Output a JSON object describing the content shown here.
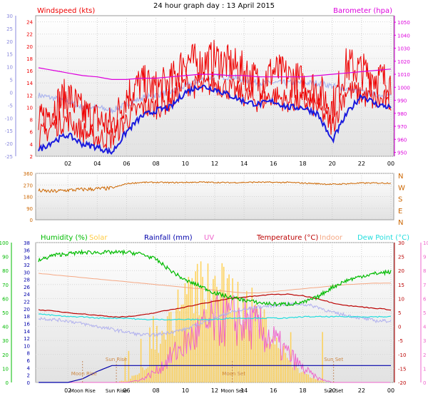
{
  "title": "24 hour graph day : 13 April 2015",
  "colors": {
    "windspeed": "#ee0000",
    "windgust": "#ee0000",
    "windavg": "#1a1add",
    "barometer": "#dd00dd",
    "baro_light": "#aab4ee",
    "wind_dir": "#cc6600",
    "humidity": "#00bb00",
    "solar": "#ffcc44",
    "rainfall": "#0000aa",
    "uv": "#ee66cc",
    "temperature": "#bb0000",
    "indoor": "#f5a884",
    "dewpoint": "#22dddd",
    "apparent": "#b0b0ee",
    "panel_top": "#ffffff",
    "panel_bottom": "#e4e4e4"
  },
  "chart_data": [
    {
      "type": "line",
      "title": "24 hour graph day : 13 April 2015",
      "legend": [
        {
          "key": "windspeed",
          "label": "Windspeed (kts)"
        },
        {
          "key": "barometer",
          "label": "Barometer (hpa)"
        }
      ],
      "x_ticks": [
        "02",
        "04",
        "06",
        "08",
        "10",
        "12",
        "14",
        "16",
        "18",
        "20",
        "22",
        "00"
      ],
      "y_left_ticks": [
        2,
        4,
        6,
        8,
        10,
        12,
        14,
        16,
        18,
        20,
        22,
        24
      ],
      "y_left_range": [
        2,
        25
      ],
      "y_left2_ticks": [
        -25,
        -20,
        -15,
        -10,
        -5,
        0,
        5,
        10,
        15,
        20,
        25,
        30
      ],
      "y_left2_range": [
        -25,
        30
      ],
      "y_right_ticks": [
        950,
        960,
        970,
        980,
        990,
        1000,
        1010,
        1020,
        1030,
        1040,
        1050
      ],
      "y_right_range": [
        947,
        1055
      ],
      "hours": [
        0,
        1,
        2,
        3,
        4,
        5,
        6,
        7,
        8,
        9,
        10,
        11,
        12,
        13,
        14,
        15,
        16,
        17,
        18,
        19,
        20,
        21,
        22,
        23,
        24
      ],
      "series": [
        {
          "key": "windgust",
          "unit": "kts",
          "values": [
            7,
            10,
            12,
            9,
            8,
            7,
            12,
            14,
            13,
            14,
            18,
            17,
            18,
            17,
            16,
            14,
            16,
            15,
            14,
            13,
            10,
            17,
            16,
            15,
            14
          ]
        },
        {
          "key": "windspeed",
          "unit": "kts",
          "values": [
            5,
            7,
            8,
            6,
            5,
            5,
            8,
            10,
            10,
            11,
            14,
            13,
            14,
            13,
            12,
            11,
            12,
            11,
            11,
            10,
            7,
            13,
            12,
            11,
            11
          ]
        },
        {
          "key": "windavg",
          "unit": "kts",
          "values": [
            3,
            4.5,
            5.5,
            4,
            3.5,
            2.6,
            6,
            8.5,
            9.5,
            10,
            12.5,
            13.5,
            13,
            12,
            11,
            10.5,
            11,
            10,
            10,
            9,
            4.5,
            9,
            12,
            10.5,
            10
          ]
        },
        {
          "key": "barometer",
          "unit": "hpa",
          "values": [
            1015,
            1013,
            1011,
            1009,
            1008,
            1006,
            1006,
            1007,
            1007,
            1008,
            1009,
            1010,
            1010,
            1009,
            1009,
            1008,
            1008,
            1008,
            1008,
            1009,
            1010,
            1011,
            1012,
            1013,
            1014
          ]
        },
        {
          "key": "baro_light",
          "unit": "kts",
          "values": [
            12,
            11.5,
            11,
            10,
            10,
            9.5,
            10.5,
            11.5,
            12,
            12.5,
            13.5,
            14.5,
            15,
            15,
            14.5,
            14,
            14,
            14,
            14,
            14,
            13.5,
            13,
            12.5,
            12,
            12
          ]
        }
      ]
    },
    {
      "type": "scatter",
      "series": [
        {
          "key": "wind_dir",
          "unit": "deg"
        }
      ],
      "y_ticks": [
        90,
        180,
        270,
        360
      ],
      "y_range": [
        0,
        360
      ],
      "compass_labels": [
        "N",
        "W",
        "S",
        "E",
        "N"
      ],
      "hours": [
        0,
        1,
        2,
        3,
        4,
        5,
        6,
        7,
        8,
        9,
        10,
        11,
        12,
        13,
        14,
        15,
        16,
        17,
        18,
        19,
        20,
        21,
        22,
        23,
        24
      ],
      "values": [
        225,
        220,
        230,
        235,
        240,
        245,
        280,
        290,
        290,
        288,
        290,
        292,
        290,
        288,
        290,
        292,
        290,
        290,
        285,
        280,
        275,
        280,
        285,
        285,
        285
      ]
    },
    {
      "type": "line",
      "legend": [
        {
          "key": "humidity",
          "label": "Humidity (%)"
        },
        {
          "key": "solar",
          "label": "Solar"
        },
        {
          "key": "rainfall",
          "label": "Rainfall (mm)"
        },
        {
          "key": "uv",
          "label": "UV"
        },
        {
          "key": "temperature",
          "label": "Temperature (°C)"
        },
        {
          "key": "indoor",
          "label": "Indoor"
        },
        {
          "key": "dewpoint",
          "label": "Dew Point (°C)"
        }
      ],
      "x_ticks": [
        "02",
        "06",
        "08",
        "10",
        "12",
        "14",
        "16",
        "18",
        "20",
        "22",
        "00"
      ],
      "y_humidity_ticks": [
        0,
        10,
        20,
        30,
        40,
        50,
        60,
        70,
        80,
        90,
        100
      ],
      "y_rain_ticks": [
        0,
        2,
        4,
        6,
        8,
        10,
        12,
        14,
        16,
        18,
        20,
        22,
        24,
        26,
        28,
        30,
        32,
        34,
        36,
        38
      ],
      "y_temp_ticks": [
        -20,
        -15,
        -10,
        -5,
        0,
        5,
        10,
        15,
        20,
        25,
        30
      ],
      "y_uv_ticks": [
        0,
        1,
        2,
        3,
        4,
        5,
        6,
        7,
        8,
        9,
        10
      ],
      "events": [
        {
          "label": "Moon Rise",
          "hour": 3
        },
        {
          "label": "Sun Rise",
          "hour": 5.3
        },
        {
          "label": "Moon Set",
          "hour": 13.2
        },
        {
          "label": "Sun Set",
          "hour": 20.1
        }
      ],
      "hours": [
        0,
        1,
        2,
        3,
        4,
        5,
        6,
        7,
        8,
        9,
        10,
        11,
        12,
        13,
        14,
        15,
        16,
        17,
        18,
        19,
        20,
        21,
        22,
        23,
        24
      ],
      "series": [
        {
          "key": "humidity",
          "unit": "%",
          "values": [
            87,
            91,
            92,
            93,
            93,
            93,
            93,
            92,
            88,
            80,
            73,
            69,
            64,
            61,
            59,
            57,
            56,
            56,
            57,
            61,
            68,
            73,
            76,
            78,
            79
          ]
        },
        {
          "key": "indoor",
          "unit": "°C",
          "values": [
            19,
            18.5,
            18,
            17.5,
            17,
            16.5,
            16,
            15.5,
            15,
            14.5,
            14,
            13.5,
            13,
            12.5,
            12,
            12,
            12.5,
            13,
            13.5,
            14,
            14.5,
            15,
            15.3,
            15.5,
            15.5
          ]
        },
        {
          "key": "temperature",
          "unit": "°C",
          "values": [
            6,
            5.5,
            5,
            4.5,
            4,
            3.5,
            3.5,
            4,
            5,
            6,
            7,
            8,
            9,
            10,
            10.5,
            11,
            11.5,
            11.5,
            11,
            10,
            8.5,
            7.5,
            7,
            6.5,
            6
          ]
        },
        {
          "key": "dewpoint",
          "unit": "°C",
          "values": [
            4.5,
            4,
            3.5,
            3.5,
            3,
            3,
            3,
            2.5,
            2.5,
            2.5,
            2.5,
            2.5,
            2.5,
            3,
            3,
            3,
            3,
            3,
            3.5,
            3.5,
            3.5,
            3.5,
            3.5,
            3.5,
            3.5
          ]
        },
        {
          "key": "apparent",
          "unit": "°C",
          "values": [
            3,
            2.5,
            2,
            1,
            0,
            -1,
            -2,
            -3,
            -3,
            -2,
            -1,
            1,
            3,
            5,
            6,
            7,
            7.5,
            8,
            8,
            7,
            5,
            4,
            3,
            2,
            2
          ]
        },
        {
          "key": "rainfall",
          "unit": "mm",
          "values": [
            0,
            0,
            0,
            1,
            3,
            4.6,
            4.6,
            4.6,
            4.6,
            4.6,
            4.6,
            4.6,
            4.6,
            4.6,
            4.6,
            4.6,
            4.6,
            4.6,
            4.6,
            4.6,
            4.6,
            4.6,
            4.6,
            4.6,
            4.6
          ]
        },
        {
          "key": "solar",
          "unit": "W/m²",
          "values": [
            0,
            0,
            0,
            0,
            0,
            0,
            2,
            10,
            30,
            55,
            75,
            85,
            85,
            80,
            70,
            60,
            40,
            20,
            8,
            2,
            0,
            0,
            0,
            0,
            0
          ]
        },
        {
          "key": "uv",
          "unit": "index",
          "values": [
            0,
            0,
            0,
            0,
            0,
            0,
            0,
            0.2,
            0.8,
            1.8,
            2.8,
            3.6,
            4.3,
            4.5,
            4.3,
            3.8,
            3,
            2,
            1,
            0.3,
            0,
            0,
            0,
            0,
            0
          ]
        }
      ]
    }
  ]
}
